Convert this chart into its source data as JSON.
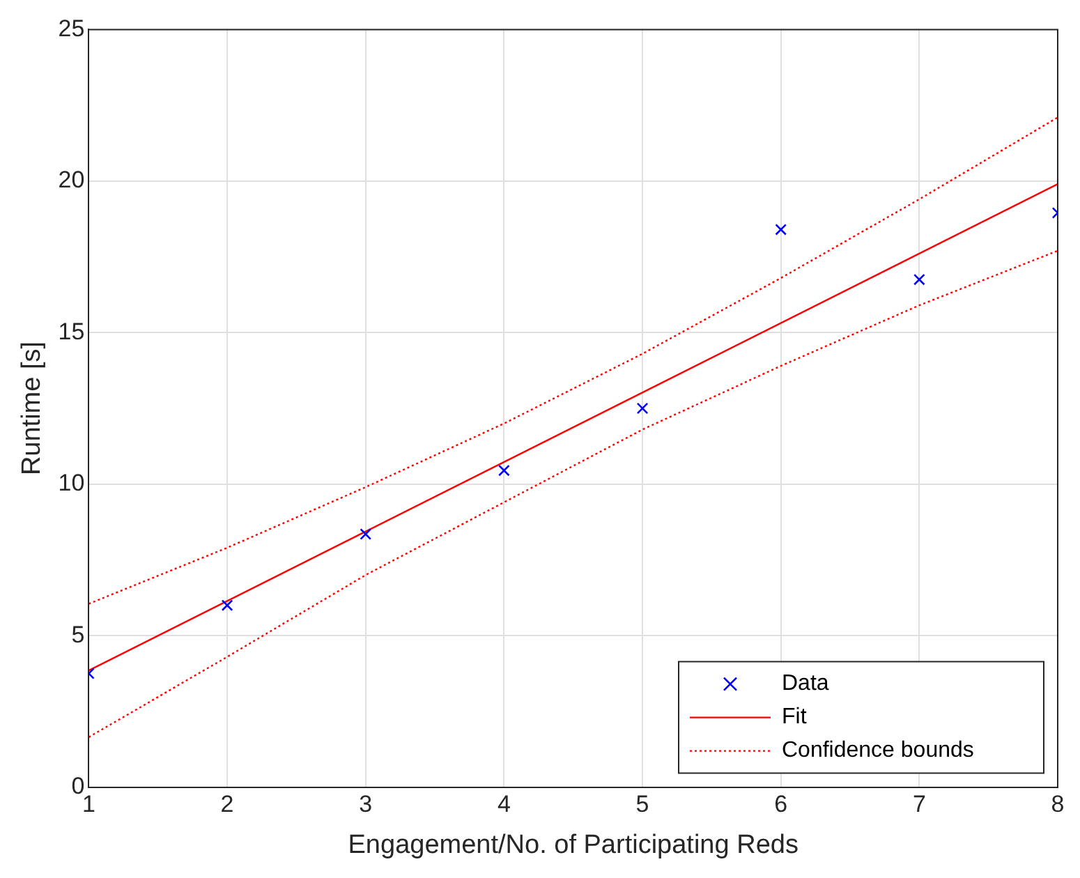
{
  "chart_data": {
    "type": "scatter",
    "xlabel": "Engagement/No. of Participating Reds",
    "ylabel": "Runtime [s]",
    "xlim": [
      1,
      8
    ],
    "xticks": [
      1,
      2,
      3,
      4,
      5,
      6,
      7,
      8
    ],
    "ylim": [
      0,
      25
    ],
    "yticks": [
      0,
      5,
      10,
      15,
      20,
      25
    ],
    "grid": true,
    "legend": "bottom right",
    "series": [
      {
        "name": "Data",
        "type": "scatter",
        "marker": "cross",
        "color": "#0000ff",
        "x": [
          1,
          2,
          3,
          4,
          5,
          6,
          7,
          8
        ],
        "values": [
          3.75,
          6.0,
          8.35,
          10.45,
          12.5,
          18.4,
          16.75,
          18.95
        ]
      },
      {
        "name": "Fit",
        "type": "line",
        "marker": "none",
        "line_style": "solid",
        "color": "#ff0000",
        "x": [
          1,
          8
        ],
        "values": [
          3.85,
          19.9
        ]
      },
      {
        "name": "Confidence bounds",
        "type": "line",
        "marker": "none",
        "line_style": "dotted",
        "color": "#ff0000",
        "x": [
          1,
          2,
          3,
          4,
          5,
          6,
          7,
          8
        ],
        "values": [
          6.05,
          7.9,
          9.9,
          12.0,
          14.3,
          16.8,
          19.4,
          22.1
        ]
      },
      {
        "type": "line",
        "marker": "none",
        "line_style": "dotted",
        "color": "#ff0000",
        "x": [
          1,
          2,
          3,
          4,
          5,
          6,
          7,
          8
        ],
        "values": [
          1.65,
          4.3,
          7.0,
          9.4,
          11.8,
          13.9,
          15.9,
          17.7
        ]
      }
    ]
  }
}
